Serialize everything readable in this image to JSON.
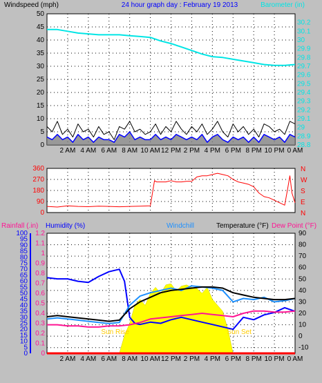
{
  "colors": {
    "background": "#c0c0c0",
    "plot_bg": "#ffffff",
    "barometer": "#00e5e5",
    "wind_avg": "#0000ff",
    "wind_gust": "#000000",
    "wind_fill": "#808080",
    "direction": "#ff0000",
    "humidity": "#0000ff",
    "windchill": "#1e90ff",
    "temperature": "#000000",
    "dewpoint": "#ff1493",
    "solar": "#ffff00",
    "rain": "#ff0000"
  },
  "chart_data": [
    {
      "type": "line",
      "title": "24 hour graph day : February 19 2013",
      "ylabel": "Windspeed (mph)",
      "y2label": "Barometer (in)",
      "xlim": [
        0,
        24
      ],
      "ylim": [
        0,
        50
      ],
      "y2lim": [
        28.8,
        30.3
      ],
      "x_ticks": [
        "2 AM",
        "4 AM",
        "6 AM",
        "8 AM",
        "10 AM",
        "12 PM",
        "2 PM",
        "4 PM",
        "6 PM",
        "8 PM",
        "10 PM",
        "0 AM"
      ],
      "y_ticks": [
        "0",
        "5",
        "10",
        "15",
        "20",
        "25",
        "30",
        "35",
        "40",
        "45",
        "50"
      ],
      "y2_ticks": [
        "28.8",
        "28.9",
        "29",
        "29.1",
        "29.2",
        "29.3",
        "29.4",
        "29.5",
        "29.6",
        "29.7",
        "29.8",
        "29.9",
        "30",
        "30.1",
        "30.2"
      ],
      "grid": true,
      "series": [
        {
          "name": "Barometer",
          "axis": "right",
          "x": [
            0,
            1,
            2,
            3,
            4,
            5,
            6,
            7,
            8,
            9,
            10,
            11,
            12,
            13,
            14,
            15,
            16,
            17,
            18,
            19,
            20,
            21,
            22,
            23,
            24
          ],
          "values": [
            30.12,
            30.12,
            30.1,
            30.08,
            30.07,
            30.06,
            30.06,
            30.06,
            30.05,
            30.04,
            30.03,
            29.99,
            29.96,
            29.92,
            29.88,
            29.84,
            29.81,
            29.8,
            29.78,
            29.76,
            29.74,
            29.72,
            29.71,
            29.71,
            29.72
          ]
        },
        {
          "name": "Windgust",
          "axis": "left",
          "x": [
            0,
            0.5,
            1,
            1.5,
            2,
            2.5,
            3,
            3.5,
            4,
            4.5,
            5,
            5.5,
            6,
            6.5,
            7,
            7.5,
            8,
            8.5,
            9,
            9.5,
            10,
            10.5,
            11,
            11.5,
            12,
            12.5,
            13,
            13.5,
            14,
            14.5,
            15,
            15.5,
            16,
            16.5,
            17,
            17.5,
            18,
            18.5,
            19,
            19.5,
            20,
            20.5,
            21,
            21.5,
            22,
            22.5,
            23,
            23.5,
            24
          ],
          "values": [
            7,
            5,
            9,
            4,
            6,
            3,
            8,
            5,
            6,
            3,
            7,
            4,
            5,
            2,
            7,
            6,
            9,
            5,
            6,
            4,
            5,
            8,
            4,
            7,
            5,
            9,
            6,
            4,
            7,
            5,
            8,
            4,
            6,
            9,
            5,
            3,
            8,
            5,
            7,
            4,
            6,
            3,
            8,
            7,
            5,
            6,
            4,
            9,
            8
          ]
        },
        {
          "name": "Windspeed",
          "axis": "left",
          "x": [
            0,
            0.5,
            1,
            1.5,
            2,
            2.5,
            3,
            3.5,
            4,
            4.5,
            5,
            5.5,
            6,
            6.5,
            7,
            7.5,
            8,
            8.5,
            9,
            9.5,
            10,
            10.5,
            11,
            11.5,
            12,
            12.5,
            13,
            13.5,
            14,
            14.5,
            15,
            15.5,
            16,
            16.5,
            17,
            17.5,
            18,
            18.5,
            19,
            19.5,
            20,
            20.5,
            21,
            21.5,
            22,
            22.5,
            23,
            23.5,
            24
          ],
          "values": [
            3,
            2,
            4,
            2,
            3,
            1,
            4,
            2,
            3,
            1,
            3,
            2,
            2,
            1,
            4,
            3,
            5,
            2,
            3,
            2,
            2,
            4,
            2,
            3,
            2,
            4,
            3,
            2,
            3,
            2,
            4,
            1,
            3,
            4,
            2,
            1,
            3,
            2,
            3,
            1,
            3,
            1,
            4,
            3,
            2,
            3,
            1,
            4,
            3
          ]
        }
      ]
    },
    {
      "type": "scatter",
      "xlim": [
        0,
        24
      ],
      "ylim": [
        0,
        360
      ],
      "y_ticks": [
        "0",
        "90",
        "180",
        "270",
        "360"
      ],
      "y2_ticks": [
        "N",
        "W",
        "S",
        "E",
        "N"
      ],
      "grid": true,
      "series": [
        {
          "name": "Wind direction",
          "x": [
            0,
            1,
            2,
            3,
            4,
            5,
            6,
            7,
            8,
            9,
            10,
            10.4,
            10.6,
            11,
            11.5,
            12,
            12.5,
            13,
            13.5,
            14,
            14.5,
            15,
            15.5,
            16,
            16.5,
            17,
            17.5,
            18,
            18.5,
            19,
            19.5,
            20,
            20.5,
            21,
            21.5,
            22,
            22.5,
            23,
            23.3,
            23.5,
            23.7,
            24
          ],
          "values": [
            50,
            45,
            55,
            50,
            48,
            52,
            50,
            47,
            50,
            52,
            55,
            260,
            250,
            250,
            250,
            260,
            250,
            250,
            255,
            255,
            290,
            300,
            300,
            310,
            320,
            310,
            300,
            270,
            250,
            240,
            230,
            210,
            160,
            130,
            120,
            100,
            80,
            60,
            200,
            300,
            160,
            80
          ]
        }
      ]
    },
    {
      "type": "line",
      "labels": [
        "Rainfall (.in)",
        "Humidity (%)",
        "Windchill",
        "Temperature (°F)",
        "Dew Point (°F)"
      ],
      "xlim": [
        0,
        24
      ],
      "ylim_left": [
        0,
        100
      ],
      "ylim_rain": [
        0,
        1.2
      ],
      "ylim_right": [
        -15,
        90
      ],
      "y_ticks_left": [
        "0",
        "5",
        "10",
        "15",
        "20",
        "25",
        "30",
        "35",
        "40",
        "45",
        "50",
        "55",
        "60",
        "65",
        "70",
        "75",
        "80",
        "85",
        "90",
        "95",
        "100"
      ],
      "y_ticks_rain": [
        "0",
        "0.1",
        "0.2",
        "0.3",
        "0.4",
        "0.5",
        "0.6",
        "0.7",
        "0.8",
        "0.9",
        "1",
        "1.1",
        "1.2"
      ],
      "y_ticks_right": [
        "-10",
        "0",
        "10",
        "20",
        "30",
        "40",
        "50",
        "60",
        "70",
        "80",
        "90"
      ],
      "annotations": [
        "Sun Rise",
        "Sun Set"
      ],
      "grid": true,
      "series": [
        {
          "name": "Humidity",
          "axis": "left",
          "x": [
            0,
            1,
            2,
            3,
            4,
            5,
            6,
            7,
            7.5,
            8,
            8.5,
            9,
            10,
            11,
            12,
            13,
            14,
            15,
            16,
            17,
            18,
            18.5,
            19,
            20,
            21,
            22,
            23,
            24
          ],
          "values": [
            63,
            62,
            62,
            60,
            59,
            64,
            68,
            70,
            60,
            30,
            25,
            24,
            26,
            25,
            28,
            30,
            28,
            26,
            24,
            22,
            20,
            25,
            30,
            28,
            32,
            34,
            38,
            35
          ]
        },
        {
          "name": "Windchill",
          "axis": "right",
          "x": [
            0,
            1,
            2,
            3,
            4,
            5,
            6,
            7,
            8,
            9,
            10,
            11,
            12,
            13,
            14,
            15,
            16,
            17,
            18,
            19,
            20,
            21,
            22,
            23,
            24
          ],
          "values": [
            15,
            16,
            15,
            14,
            13,
            12,
            11,
            12,
            27,
            35,
            38,
            40,
            42,
            40,
            44,
            43,
            42,
            40,
            30,
            33,
            32,
            34,
            30,
            31,
            33
          ]
        },
        {
          "name": "Temperature",
          "axis": "right",
          "x": [
            0,
            1,
            2,
            3,
            4,
            5,
            6,
            7,
            8,
            9,
            10,
            11,
            12,
            13,
            14,
            15,
            16,
            17,
            18,
            19,
            20,
            21,
            22,
            23,
            24
          ],
          "values": [
            17,
            18,
            17,
            16,
            15,
            14,
            13,
            14,
            24,
            30,
            34,
            38,
            40,
            41,
            42,
            43,
            43,
            42,
            38,
            36,
            34,
            33,
            32,
            32,
            33
          ]
        },
        {
          "name": "Dew Point",
          "axis": "right",
          "x": [
            0,
            1,
            2,
            3,
            4,
            5,
            6,
            7,
            8,
            9,
            10,
            11,
            12,
            13,
            14,
            15,
            16,
            17,
            18,
            19,
            20,
            21,
            22,
            23,
            24
          ],
          "values": [
            10,
            10,
            9,
            9,
            8,
            8,
            9,
            9,
            10,
            12,
            15,
            16,
            17,
            18,
            19,
            20,
            19,
            18,
            17,
            20,
            22,
            22,
            21,
            21,
            22
          ]
        },
        {
          "name": "Solar",
          "axis": "left",
          "x": [
            7,
            7.5,
            8,
            8.5,
            9,
            9.5,
            10,
            10.5,
            11,
            11.5,
            12,
            12.5,
            13,
            13.5,
            14,
            14.5,
            15,
            15.5,
            16,
            16.5,
            17,
            17.5,
            18
          ],
          "values": [
            0,
            15,
            25,
            40,
            45,
            40,
            50,
            55,
            50,
            57,
            58,
            52,
            56,
            57,
            55,
            54,
            50,
            55,
            45,
            40,
            35,
            20,
            0
          ]
        },
        {
          "name": "Rainfall",
          "axis": "rain",
          "x": [
            0,
            24
          ],
          "values": [
            0,
            0
          ]
        }
      ]
    }
  ]
}
